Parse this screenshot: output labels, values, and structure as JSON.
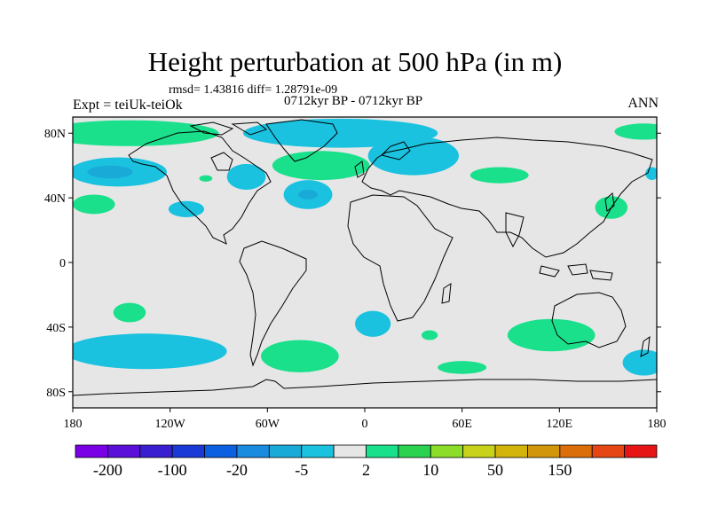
{
  "title": "Height perturbation at 500 hPa (in m)",
  "stats_line": "rmsd= 1.43816 diff= 1.28791e-09",
  "period": "0712kyr BP - 0712kyr BP",
  "experiment": "Expt = teiUk-teiOk",
  "season": "ANN",
  "axes": {
    "y_ticks": [
      {
        "label": "80N",
        "lat": 80
      },
      {
        "label": "40N",
        "lat": 40
      },
      {
        "label": "0",
        "lat": 0
      },
      {
        "label": "40S",
        "lat": -40
      },
      {
        "label": "80S",
        "lat": -80
      }
    ],
    "x_ticks": [
      {
        "label": "180",
        "lon": -180
      },
      {
        "label": "120W",
        "lon": -120
      },
      {
        "label": "60W",
        "lon": -60
      },
      {
        "label": "0",
        "lon": 0
      },
      {
        "label": "60E",
        "lon": 60
      },
      {
        "label": "120E",
        "lon": 120
      },
      {
        "label": "180",
        "lon": 180
      }
    ]
  },
  "colorbar": {
    "colors": [
      "#7a00e6",
      "#5a10d8",
      "#3a1fd0",
      "#1a3ad8",
      "#0a60e0",
      "#1a8ce0",
      "#1aaad8",
      "#1ac2e0",
      "#e6e6e6",
      "#1ae08c",
      "#2ad250",
      "#8cdc2a",
      "#c8d21a",
      "#d2b40a",
      "#d2960a",
      "#dc6e0a",
      "#e64614",
      "#e61414"
    ],
    "labels": [
      {
        "text": "-200",
        "after_box": 1
      },
      {
        "text": "-100",
        "after_box": 3
      },
      {
        "text": "-20",
        "after_box": 5
      },
      {
        "text": "-5",
        "after_box": 7
      },
      {
        "text": "2",
        "after_box": 9
      },
      {
        "text": "10",
        "after_box": 11
      },
      {
        "text": "50",
        "after_box": 13
      },
      {
        "text": "150",
        "after_box": 15
      }
    ]
  },
  "field": {
    "background": "#e6e6e6",
    "colors": {
      "neg": "#1ac2e0",
      "neg_deep": "#1aaad8",
      "pos": "#1ae08c"
    },
    "regions": [
      {
        "sign": "pos",
        "lon": -145,
        "lat": 80,
        "rlon": 55,
        "rlat": 8
      },
      {
        "sign": "neg",
        "lon": -152,
        "lat": 56,
        "rlon": 30,
        "rlat": 9
      },
      {
        "sign": "neg_deep",
        "lon": -157,
        "lat": 56,
        "rlon": 14,
        "rlat": 4
      },
      {
        "sign": "pos",
        "lon": -167,
        "lat": 36,
        "rlon": 13,
        "rlat": 6
      },
      {
        "sign": "neg",
        "lon": -110,
        "lat": 33,
        "rlon": 11,
        "rlat": 5
      },
      {
        "sign": "pos",
        "lon": -98,
        "lat": 52,
        "rlon": 4,
        "rlat": 2
      },
      {
        "sign": "neg",
        "lon": -15,
        "lat": 80,
        "rlon": 60,
        "rlat": 9
      },
      {
        "sign": "neg",
        "lon": 30,
        "lat": 66,
        "rlon": 28,
        "rlat": 12
      },
      {
        "sign": "neg",
        "lon": -73,
        "lat": 53,
        "rlon": 12,
        "rlat": 8
      },
      {
        "sign": "pos",
        "lon": -27,
        "lat": 60,
        "rlon": 30,
        "rlat": 9
      },
      {
        "sign": "neg",
        "lon": -35,
        "lat": 42,
        "rlon": 15,
        "rlat": 9
      },
      {
        "sign": "neg_deep",
        "lon": -35,
        "lat": 42,
        "rlon": 6,
        "rlat": 3
      },
      {
        "sign": "pos",
        "lon": 83,
        "lat": 54,
        "rlon": 18,
        "rlat": 5
      },
      {
        "sign": "pos",
        "lon": 152,
        "lat": 34,
        "rlon": 10,
        "rlat": 7
      },
      {
        "sign": "pos",
        "lon": 172,
        "lat": 81,
        "rlon": 18,
        "rlat": 5
      },
      {
        "sign": "neg",
        "lon": 177,
        "lat": 55,
        "rlon": 4,
        "rlat": 4
      },
      {
        "sign": "pos",
        "lon": -145,
        "lat": -31,
        "rlon": 10,
        "rlat": 6
      },
      {
        "sign": "neg",
        "lon": -135,
        "lat": -55,
        "rlon": 50,
        "rlat": 11
      },
      {
        "sign": "pos",
        "lon": -40,
        "lat": -58,
        "rlon": 24,
        "rlat": 10
      },
      {
        "sign": "neg",
        "lon": 5,
        "lat": -38,
        "rlon": 11,
        "rlat": 8
      },
      {
        "sign": "pos",
        "lon": 40,
        "lat": -45,
        "rlon": 5,
        "rlat": 3
      },
      {
        "sign": "pos",
        "lon": 60,
        "lat": -65,
        "rlon": 15,
        "rlat": 4
      },
      {
        "sign": "pos",
        "lon": 115,
        "lat": -45,
        "rlon": 27,
        "rlat": 10
      },
      {
        "sign": "neg",
        "lon": 172,
        "lat": -62,
        "rlon": 13,
        "rlat": 8
      }
    ]
  }
}
